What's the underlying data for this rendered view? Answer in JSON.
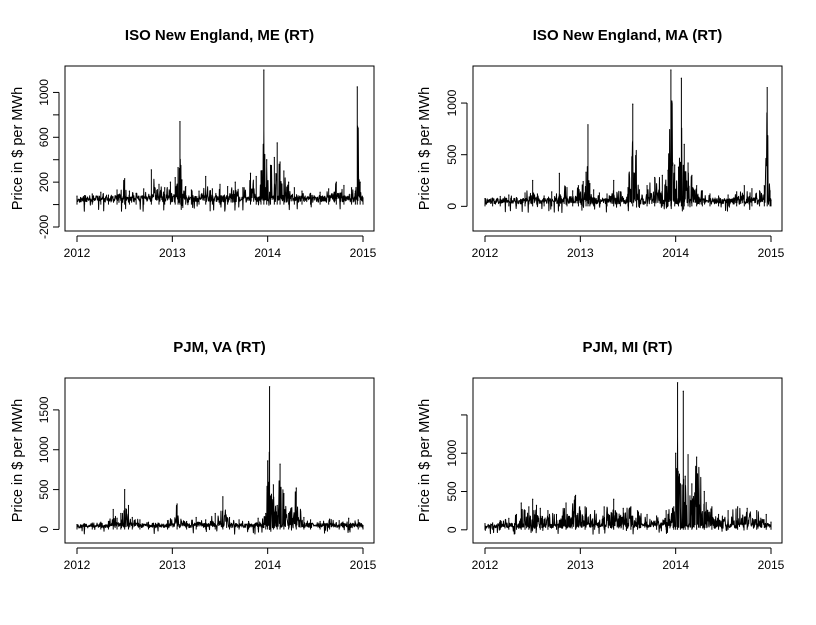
{
  "chart_data": [
    {
      "type": "line",
      "title": "ISO New England, ME (RT)",
      "ylabel": "Price in $ per MWh",
      "xlabel": "",
      "xlim": [
        2012,
        2015
      ],
      "ylim": [
        -200,
        1200
      ],
      "x_ticks": [
        2012,
        2013,
        2014,
        2015
      ],
      "x_tick_labels": [
        "2012",
        "2013",
        "2014",
        "2015"
      ],
      "y_ticks": [
        -200,
        200,
        600,
        1000
      ],
      "y_tick_labels": [
        "-200",
        "200",
        "600",
        "1000"
      ],
      "y_minor_ticks": [
        0,
        400,
        800
      ],
      "series": [
        {
          "x": [
            2012.0,
            2012.08,
            2012.16,
            2012.25,
            2012.33,
            2012.42,
            2012.5,
            2012.55,
            2012.62,
            2012.7,
            2012.78,
            2012.86,
            2012.92,
            2012.98,
            2013.03,
            2013.06,
            2013.08,
            2013.1,
            2013.14,
            2013.2,
            2013.28,
            2013.35,
            2013.42,
            2013.5,
            2013.58,
            2013.66,
            2013.74,
            2013.82,
            2013.88,
            2013.93,
            2013.96,
            2013.99,
            2014.03,
            2014.07,
            2014.1,
            2014.13,
            2014.17,
            2014.22,
            2014.28,
            2014.36,
            2014.45,
            2014.55,
            2014.64,
            2014.72,
            2014.8,
            2014.88,
            2014.92,
            2014.94,
            2014.97,
            2015.0
          ],
          "y": [
            75,
            80,
            95,
            110,
            85,
            130,
            230,
            120,
            100,
            140,
            310,
            180,
            150,
            200,
            240,
            330,
            740,
            220,
            160,
            130,
            120,
            250,
            140,
            180,
            160,
            200,
            150,
            280,
            250,
            300,
            1250,
            400,
            350,
            420,
            550,
            380,
            300,
            200,
            150,
            120,
            100,
            110,
            140,
            200,
            170,
            150,
            120,
            1050,
            200,
            60
          ]
        }
      ]
    },
    {
      "type": "line",
      "title": "ISO New England, MA (RT)",
      "ylabel": "Price in $ per MWh",
      "xlabel": "",
      "xlim": [
        2012,
        2015
      ],
      "ylim": [
        -200,
        1320
      ],
      "x_ticks": [
        2012,
        2013,
        2014,
        2015
      ],
      "x_tick_labels": [
        "2012",
        "2013",
        "2014",
        "2015"
      ],
      "y_ticks": [
        0,
        500,
        1000
      ],
      "y_tick_labels": [
        "0",
        "500",
        "1000"
      ],
      "series": [
        {
          "x": [
            2012.0,
            2012.08,
            2012.16,
            2012.25,
            2012.33,
            2012.42,
            2012.5,
            2012.55,
            2012.62,
            2012.7,
            2012.78,
            2012.86,
            2012.92,
            2012.98,
            2013.03,
            2013.06,
            2013.08,
            2013.1,
            2013.14,
            2013.2,
            2013.28,
            2013.35,
            2013.42,
            2013.5,
            2013.55,
            2013.62,
            2013.7,
            2013.78,
            2013.86,
            2013.92,
            2013.95,
            2013.99,
            2014.03,
            2014.06,
            2014.09,
            2014.13,
            2014.17,
            2014.22,
            2014.28,
            2014.36,
            2014.45,
            2014.55,
            2014.64,
            2014.72,
            2014.8,
            2014.88,
            2014.93,
            2014.96,
            2014.99,
            2015.0
          ],
          "y": [
            75,
            80,
            95,
            110,
            85,
            130,
            250,
            120,
            100,
            140,
            320,
            180,
            150,
            200,
            240,
            330,
            790,
            220,
            160,
            130,
            120,
            250,
            140,
            180,
            990,
            160,
            200,
            280,
            300,
            350,
            1320,
            400,
            380,
            1240,
            600,
            420,
            300,
            200,
            150,
            120,
            100,
            110,
            140,
            200,
            170,
            150,
            200,
            1150,
            150,
            60
          ]
        }
      ]
    },
    {
      "type": "line",
      "title": "PJM, VA (RT)",
      "ylabel": "Price in $ per MWh",
      "xlabel": "",
      "xlim": [
        2012,
        2015
      ],
      "ylim": [
        -120,
        1850
      ],
      "x_ticks": [
        2012,
        2013,
        2014,
        2015
      ],
      "x_tick_labels": [
        "2012",
        "2013",
        "2014",
        "2015"
      ],
      "y_ticks": [
        0,
        500,
        1000,
        1500
      ],
      "y_tick_labels": [
        "0",
        "500",
        "1000",
        "1500"
      ],
      "series": [
        {
          "x": [
            2012.0,
            2012.08,
            2012.16,
            2012.25,
            2012.33,
            2012.38,
            2012.42,
            2012.46,
            2012.5,
            2012.54,
            2012.58,
            2012.66,
            2012.75,
            2012.85,
            2012.95,
            2013.05,
            2013.15,
            2013.25,
            2013.35,
            2013.45,
            2013.53,
            2013.6,
            2013.7,
            2013.8,
            2013.9,
            2013.98,
            2014.0,
            2014.02,
            2014.03,
            2014.06,
            2014.1,
            2014.13,
            2014.17,
            2014.22,
            2014.3,
            2014.38,
            2014.45,
            2014.55,
            2014.65,
            2014.75,
            2014.85,
            2014.95,
            2015.0
          ],
          "y": [
            60,
            70,
            80,
            90,
            100,
            250,
            140,
            200,
            500,
            300,
            150,
            120,
            90,
            80,
            110,
            320,
            100,
            150,
            120,
            200,
            410,
            150,
            120,
            100,
            140,
            200,
            860,
            1790,
            420,
            560,
            300,
            820,
            450,
            200,
            520,
            150,
            120,
            100,
            130,
            110,
            140,
            120,
            50
          ]
        }
      ]
    },
    {
      "type": "line",
      "title": "PJM, MI (RT)",
      "ylabel": "Price in $ per MWh",
      "xlabel": "",
      "xlim": [
        2012,
        2015
      ],
      "ylim": [
        -120,
        1930
      ],
      "x_ticks": [
        2012,
        2013,
        2014,
        2015
      ],
      "x_tick_labels": [
        "2012",
        "2013",
        "2014",
        "2015"
      ],
      "y_ticks": [
        0,
        500,
        1000
      ],
      "y_tick_labels": [
        "0",
        "500",
        "1000"
      ],
      "y_minor_ticks": [
        1500
      ],
      "series": [
        {
          "x": [
            2012.0,
            2012.08,
            2012.16,
            2012.25,
            2012.33,
            2012.38,
            2012.42,
            2012.46,
            2012.5,
            2012.54,
            2012.58,
            2012.66,
            2012.75,
            2012.85,
            2012.95,
            2013.05,
            2013.15,
            2013.25,
            2013.35,
            2013.45,
            2013.53,
            2013.6,
            2013.7,
            2013.8,
            2013.9,
            2013.98,
            2014.0,
            2014.02,
            2014.05,
            2014.08,
            2014.1,
            2014.13,
            2014.17,
            2014.22,
            2014.3,
            2014.38,
            2014.45,
            2014.55,
            2014.65,
            2014.75,
            2014.85,
            2014.95,
            2015.0
          ],
          "y": [
            80,
            90,
            120,
            150,
            200,
            350,
            250,
            300,
            400,
            320,
            280,
            250,
            200,
            350,
            450,
            300,
            250,
            300,
            400,
            280,
            300,
            250,
            200,
            180,
            250,
            300,
            1000,
            1920,
            600,
            1810,
            700,
            980,
            600,
            950,
            500,
            300,
            200,
            250,
            300,
            280,
            250,
            200,
            100
          ]
        }
      ]
    }
  ]
}
